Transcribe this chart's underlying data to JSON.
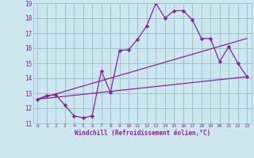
{
  "xlabel": "Windchill (Refroidissement éolien,°C)",
  "xlim": [
    -0.5,
    23.5
  ],
  "ylim": [
    11,
    19
  ],
  "xticks": [
    0,
    1,
    2,
    3,
    4,
    5,
    6,
    7,
    8,
    9,
    10,
    11,
    12,
    13,
    14,
    15,
    16,
    17,
    18,
    19,
    20,
    21,
    22,
    23
  ],
  "yticks": [
    11,
    12,
    13,
    14,
    15,
    16,
    17,
    18,
    19
  ],
  "bg_color": "#cce8ee",
  "line_color": "#882299",
  "grid_color": "#99bbcc",
  "line1_x": [
    0,
    1,
    2,
    3,
    4,
    5,
    6,
    7,
    8,
    9,
    10,
    11,
    12,
    13,
    14,
    15,
    16,
    17,
    18,
    19,
    20,
    21,
    22,
    23
  ],
  "line1_y": [
    12.6,
    12.85,
    12.9,
    12.2,
    11.5,
    11.35,
    11.5,
    14.5,
    13.05,
    15.85,
    15.9,
    16.6,
    17.5,
    19.0,
    18.0,
    18.5,
    18.5,
    17.9,
    16.65,
    16.65,
    15.1,
    16.1,
    15.0,
    14.1
  ],
  "line2_x": [
    0,
    23
  ],
  "line2_y": [
    12.6,
    16.65
  ],
  "line3_x": [
    0,
    23
  ],
  "line3_y": [
    12.6,
    14.1
  ]
}
